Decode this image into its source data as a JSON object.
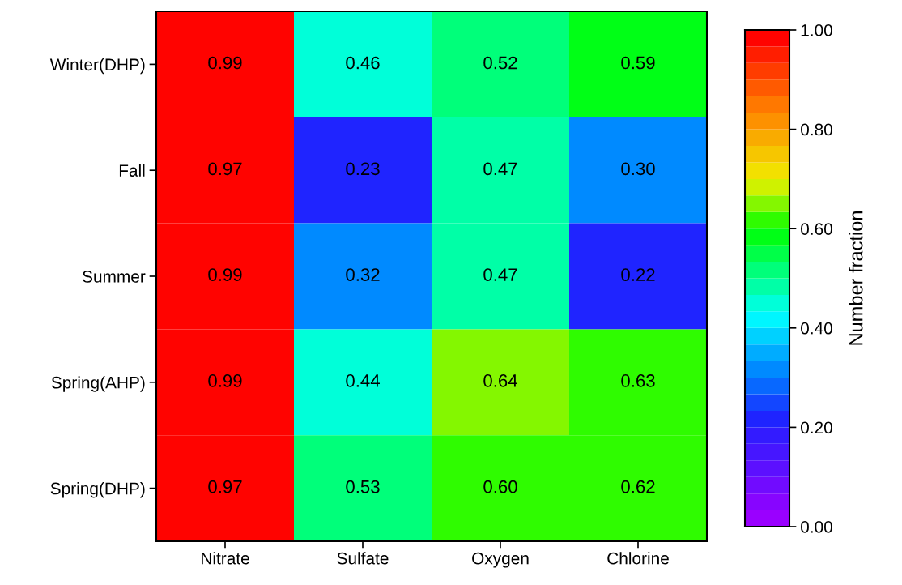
{
  "chart_data": {
    "type": "heatmap",
    "categories": [
      "Nitrate",
      "Sulfate",
      "Oxygen",
      "Chlorine"
    ],
    "y_categories": [
      "Winter(DHP)",
      "Fall",
      "Summer",
      "Spring(AHP)",
      "Spring(DHP)"
    ],
    "cells": [
      [
        0.99,
        0.46,
        0.52,
        0.59
      ],
      [
        0.97,
        0.23,
        0.47,
        0.3
      ],
      [
        0.99,
        0.32,
        0.47,
        0.22
      ],
      [
        0.99,
        0.44,
        0.64,
        0.63
      ],
      [
        0.97,
        0.53,
        0.6,
        0.62
      ]
    ],
    "cell_labels": [
      [
        "0.99",
        "0.46",
        "0.52",
        "0.59"
      ],
      [
        "0.97",
        "0.23",
        "0.47",
        "0.30"
      ],
      [
        "0.99",
        "0.32",
        "0.47",
        "0.22"
      ],
      [
        "0.99",
        "0.44",
        "0.64",
        "0.63"
      ],
      [
        "0.97",
        "0.53",
        "0.60",
        "0.62"
      ]
    ],
    "clabel": "Number fraction",
    "clim": [
      0,
      1
    ],
    "cticks": [
      {
        "value": 0,
        "label": "0.00"
      },
      {
        "value": 0.2,
        "label": "0.20"
      },
      {
        "value": 0.4,
        "label": "0.40"
      },
      {
        "value": 0.6,
        "label": "0.60"
      },
      {
        "value": 0.8,
        "label": "0.80"
      },
      {
        "value": 1,
        "label": "1.00"
      }
    ]
  }
}
